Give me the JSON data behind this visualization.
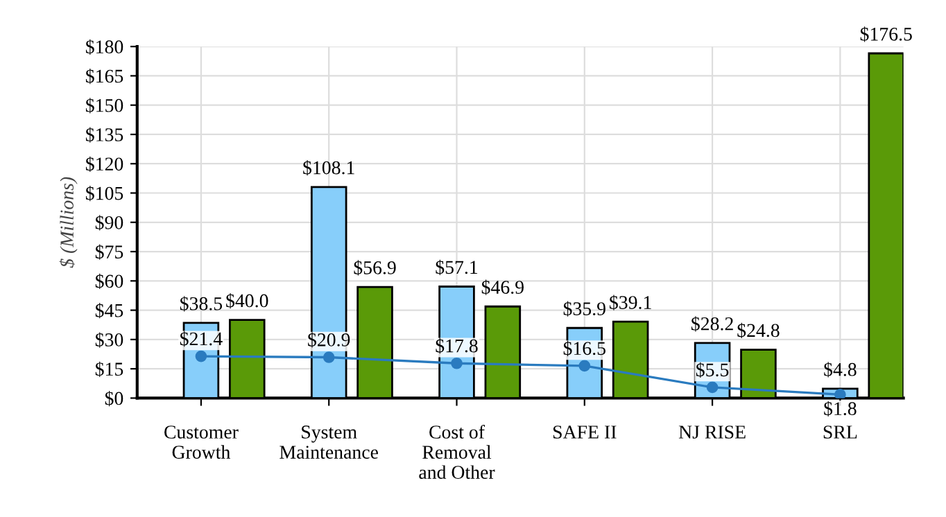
{
  "chart_data": {
    "type": "bar",
    "ylabel": "$ (Millions)",
    "categories": [
      "Customer\nGrowth",
      "System\nMaintenance",
      "Cost of\nRemoval\nand Other",
      "SAFE II",
      "NJ RISE",
      "SRL"
    ],
    "series": [
      {
        "color": "#87cefa",
        "values": [
          38.5,
          108.1,
          57.1,
          35.9,
          28.2,
          4.8
        ],
        "value_labels": [
          "$38.5",
          "$108.1",
          "$57.1",
          "$35.9",
          "$28.2",
          "$4.8"
        ]
      },
      {
        "color": "#5a9a08",
        "values": [
          40.0,
          56.9,
          46.9,
          39.1,
          24.8,
          176.5
        ],
        "value_labels": [
          "$40.0",
          "$56.9",
          "$46.9",
          "$39.1",
          "$24.8",
          "$176.5"
        ]
      },
      {
        "type": "line",
        "color": "#2a7bbf",
        "marker": "circle",
        "values": [
          21.4,
          20.9,
          17.8,
          16.5,
          5.5,
          1.8
        ],
        "value_labels": [
          "$21.4",
          "$20.9",
          "$17.8",
          "$16.5",
          "$5.5",
          "$1.8"
        ]
      }
    ],
    "ylim": [
      0,
      180
    ],
    "yticks": [
      {
        "value": 0,
        "label": "$0"
      },
      {
        "value": 15,
        "label": "$15"
      },
      {
        "value": 30,
        "label": "$30"
      },
      {
        "value": 45,
        "label": "$45"
      },
      {
        "value": 60,
        "label": "$60"
      },
      {
        "value": 75,
        "label": "$75"
      },
      {
        "value": 90,
        "label": "$90"
      },
      {
        "value": 105,
        "label": "$105"
      },
      {
        "value": 120,
        "label": "$120"
      },
      {
        "value": 135,
        "label": "$135"
      },
      {
        "value": 150,
        "label": "$150"
      },
      {
        "value": 165,
        "label": "$165"
      },
      {
        "value": 180,
        "label": "$180"
      }
    ],
    "grid": true
  }
}
